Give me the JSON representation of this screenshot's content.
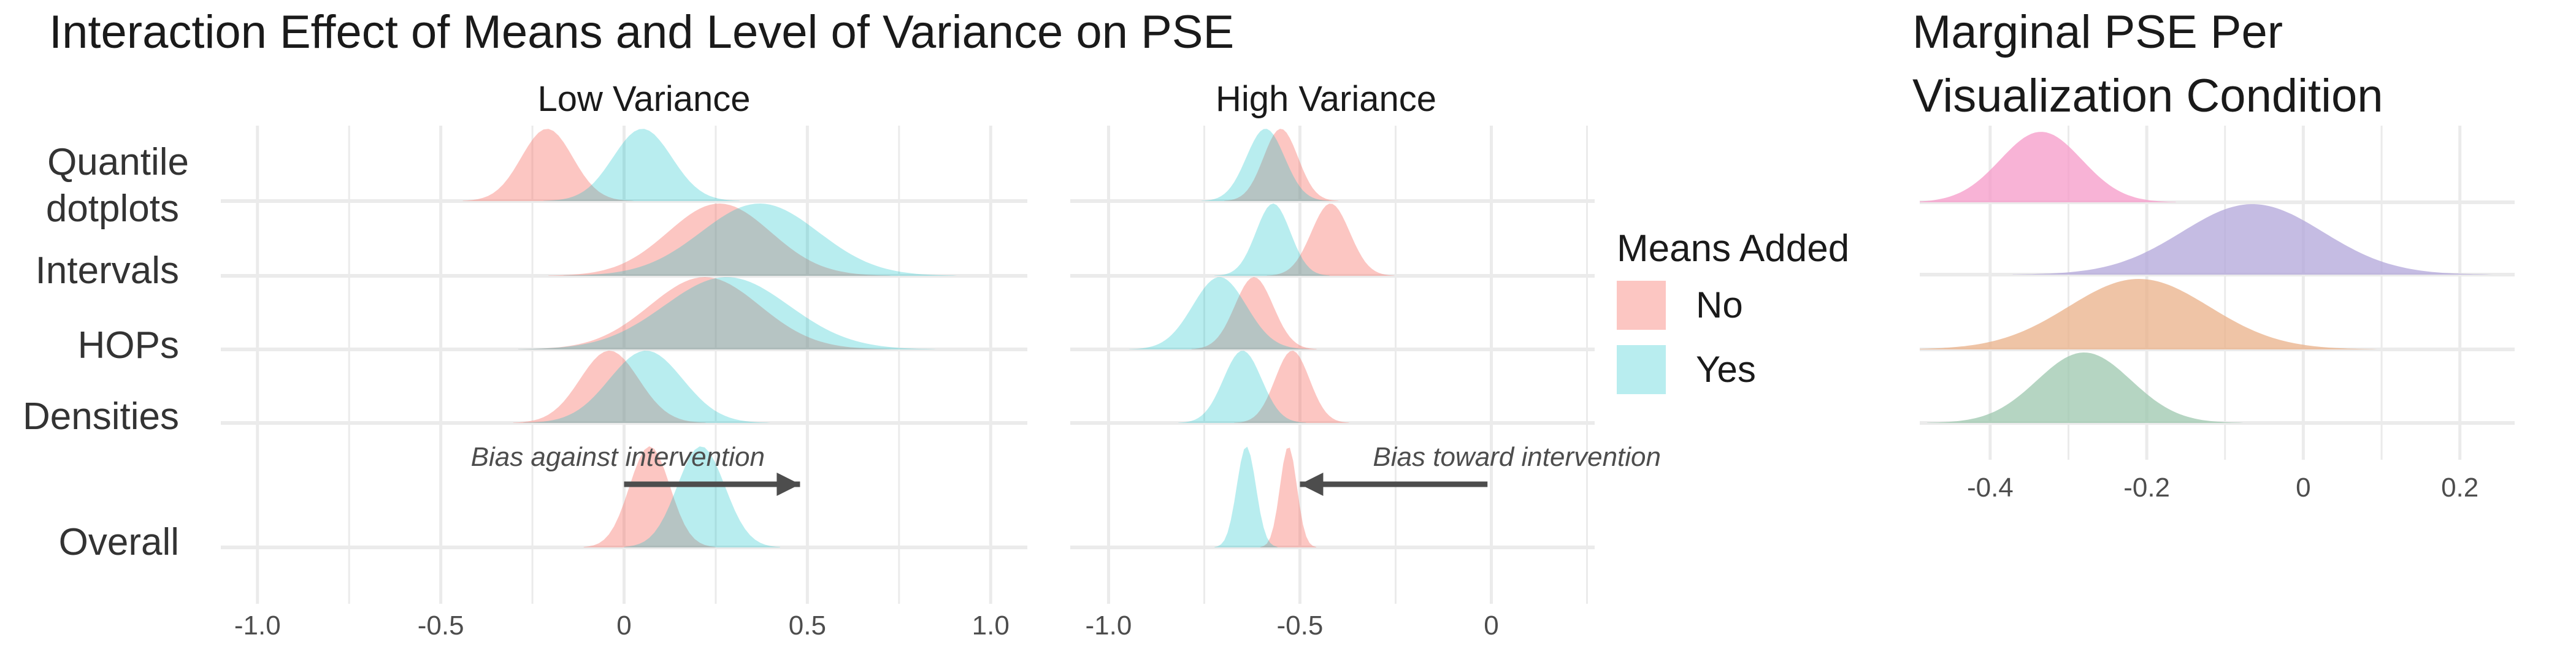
{
  "chart_data": [
    {
      "type": "area",
      "subtype": "ridgeline-density",
      "title": "Interaction Effect of Means and Level of Variance on PSE",
      "facets": [
        "Low Variance",
        "High Variance"
      ],
      "rows": [
        "Quantile dotplots",
        "Intervals",
        "HOPs",
        "Densities",
        "Overall"
      ],
      "x_ticks": {
        "Low Variance": [
          "-1.0",
          "-0.5",
          "0",
          "0.5",
          "1.0"
        ],
        "High Variance": [
          "-1.0",
          "-0.5",
          "0"
        ]
      },
      "xlim": {
        "Low Variance": [
          -1.1,
          1.1
        ],
        "High Variance": [
          -1.1,
          0.27
        ]
      },
      "legend": {
        "title": "Means Added",
        "items": [
          {
            "label": "No",
            "color": "#F8766D"
          },
          {
            "label": "Yes",
            "color": "#00BFC4"
          }
        ],
        "placement": "right"
      },
      "series": [
        {
          "facet": "Low Variance",
          "row": "Quantile dotplots",
          "means_added": "No",
          "mode": -0.21,
          "spread": 0.07
        },
        {
          "facet": "Low Variance",
          "row": "Quantile dotplots",
          "means_added": "Yes",
          "mode": 0.05,
          "spread": 0.08
        },
        {
          "facet": "Low Variance",
          "row": "Intervals",
          "means_added": "No",
          "mode": 0.26,
          "spread": 0.14
        },
        {
          "facet": "Low Variance",
          "row": "Intervals",
          "means_added": "Yes",
          "mode": 0.37,
          "spread": 0.16
        },
        {
          "facet": "Low Variance",
          "row": "HOPs",
          "means_added": "No",
          "mode": 0.22,
          "spread": 0.15
        },
        {
          "facet": "Low Variance",
          "row": "HOPs",
          "means_added": "Yes",
          "mode": 0.28,
          "spread": 0.17
        },
        {
          "facet": "Low Variance",
          "row": "Densities",
          "means_added": "No",
          "mode": -0.04,
          "spread": 0.08
        },
        {
          "facet": "Low Variance",
          "row": "Densities",
          "means_added": "Yes",
          "mode": 0.06,
          "spread": 0.1
        },
        {
          "facet": "Low Variance",
          "row": "Overall",
          "means_added": "No",
          "mode": 0.07,
          "spread": 0.055
        },
        {
          "facet": "Low Variance",
          "row": "Overall",
          "means_added": "Yes",
          "mode": 0.21,
          "spread": 0.065
        },
        {
          "facet": "High Variance",
          "row": "Quantile dotplots",
          "means_added": "No",
          "mode": -0.55,
          "spread": 0.045
        },
        {
          "facet": "High Variance",
          "row": "Quantile dotplots",
          "means_added": "Yes",
          "mode": -0.59,
          "spread": 0.05
        },
        {
          "facet": "High Variance",
          "row": "Intervals",
          "means_added": "No",
          "mode": -0.42,
          "spread": 0.05
        },
        {
          "facet": "High Variance",
          "row": "Intervals",
          "means_added": "Yes",
          "mode": -0.57,
          "spread": 0.045
        },
        {
          "facet": "High Variance",
          "row": "HOPs",
          "means_added": "No",
          "mode": -0.62,
          "spread": 0.05
        },
        {
          "facet": "High Variance",
          "row": "HOPs",
          "means_added": "Yes",
          "mode": -0.71,
          "spread": 0.07
        },
        {
          "facet": "High Variance",
          "row": "Densities",
          "means_added": "No",
          "mode": -0.52,
          "spread": 0.045
        },
        {
          "facet": "High Variance",
          "row": "Densities",
          "means_added": "Yes",
          "mode": -0.65,
          "spread": 0.05
        },
        {
          "facet": "High Variance",
          "row": "Overall",
          "means_added": "No",
          "mode": -0.53,
          "spread": 0.022
        },
        {
          "facet": "High Variance",
          "row": "Overall",
          "means_added": "Yes",
          "mode": -0.64,
          "spread": 0.025
        }
      ],
      "annotations": [
        {
          "facet": "Low Variance",
          "text": "Bias against intervention",
          "arrow_from": 0.0,
          "arrow_to": 0.48
        },
        {
          "facet": "High Variance",
          "text": "Bias toward intervention",
          "arrow_from": -0.01,
          "arrow_to": -0.5
        }
      ],
      "grid": true
    },
    {
      "type": "area",
      "subtype": "ridgeline-density",
      "title": "Marginal PSE Per Visualization Condition",
      "x_ticks": [
        "-0.4",
        "-0.2",
        "0",
        "0.2"
      ],
      "xlim": [
        -0.49,
        0.27
      ],
      "grid": true,
      "series": [
        {
          "row": 1,
          "color": "#F59AC8",
          "mode": -0.335,
          "spread": 0.052
        },
        {
          "row": 2,
          "color": "#B2A6D9",
          "mode": -0.065,
          "spread": 0.09
        },
        {
          "row": 3,
          "color": "#E9B088",
          "mode": -0.21,
          "spread": 0.09
        },
        {
          "row": 4,
          "color": "#9CC7AE",
          "mode": -0.28,
          "spread": 0.06
        }
      ]
    }
  ]
}
